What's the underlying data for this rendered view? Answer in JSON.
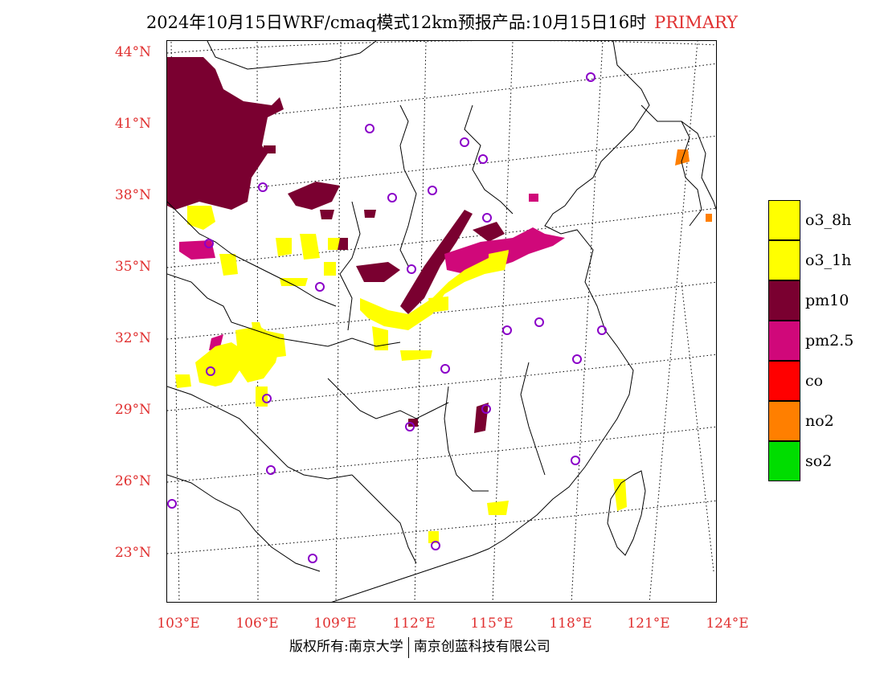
{
  "title": {
    "main": "2024年10月15日WRF/cmaq模式12km预报产品:10月15日16时",
    "tag": "PRIMARY"
  },
  "axes": {
    "lat_labels": [
      "44°N",
      "41°N",
      "38°N",
      "35°N",
      "32°N",
      "29°N",
      "26°N",
      "23°N"
    ],
    "lon_labels": [
      "103°E",
      "106°E",
      "109°E",
      "112°E",
      "115°E",
      "118°E",
      "121°E",
      "124°E"
    ]
  },
  "legend": {
    "items": [
      {
        "label": "o3_8h",
        "color": "#ffff00"
      },
      {
        "label": "o3_1h",
        "color": "#ffff00"
      },
      {
        "label": "pm10",
        "color": "#7a0030"
      },
      {
        "label": "pm2.5",
        "color": "#d0087a"
      },
      {
        "label": "co",
        "color": "#ff0000"
      },
      {
        "label": "no2",
        "color": "#ff7f00"
      },
      {
        "label": "so2",
        "color": "#00dd00"
      }
    ]
  },
  "footer": {
    "left": "版权所有:南京大学",
    "right": "南京创蓝科技有限公司"
  },
  "colors": {
    "label_red": "#e03030",
    "station_circle": "#8a00c8"
  }
}
